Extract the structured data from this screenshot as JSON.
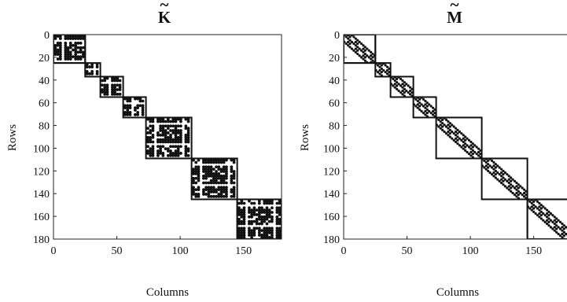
{
  "chart_data": [
    {
      "type": "heatmap",
      "subtype": "sparsity-pattern",
      "title": "K",
      "title_accent": "~",
      "xlabel": "Columns",
      "ylabel": "Rows",
      "x_ticks": [
        0,
        50,
        100,
        150
      ],
      "y_ticks": [
        0,
        20,
        40,
        60,
        80,
        100,
        120,
        140,
        160,
        180
      ],
      "xlim": [
        0,
        180
      ],
      "ylim": [
        180,
        0
      ],
      "grid": false,
      "blocks": [
        [
          0,
          25
        ],
        [
          25,
          37
        ],
        [
          37,
          55
        ],
        [
          55,
          73
        ],
        [
          73,
          109
        ],
        [
          109,
          145
        ],
        [
          145,
          180
        ]
      ],
      "block_fill": "dense",
      "dot_color": "#111111"
    },
    {
      "type": "heatmap",
      "subtype": "sparsity-pattern",
      "title": "M",
      "title_accent": "~",
      "xlabel": "Columns",
      "ylabel": "Rows",
      "x_ticks": [
        0,
        50,
        100,
        150
      ],
      "y_ticks": [
        0,
        20,
        40,
        60,
        80,
        100,
        120,
        140,
        160,
        180
      ],
      "xlim": [
        0,
        180
      ],
      "ylim": [
        180,
        0
      ],
      "grid": false,
      "blocks": [
        [
          0,
          25
        ],
        [
          25,
          37
        ],
        [
          37,
          55
        ],
        [
          55,
          73
        ],
        [
          73,
          109
        ],
        [
          109,
          145
        ],
        [
          145,
          180
        ]
      ],
      "block_fill": "diagonal-bands",
      "dot_color": "#111111"
    }
  ]
}
